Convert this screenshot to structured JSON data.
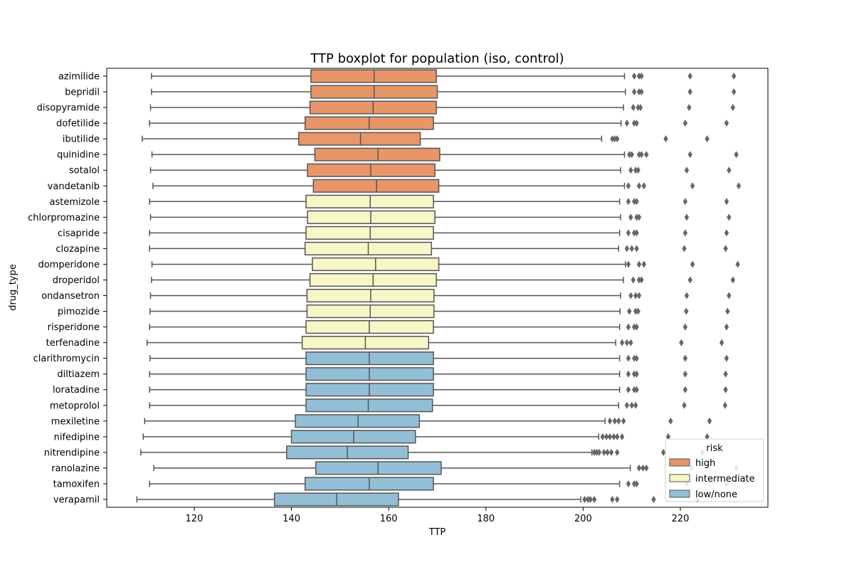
{
  "chart_data": {
    "type": "boxplot",
    "orientation": "horizontal",
    "title": "TTP boxplot for population (iso, control)",
    "xlabel": "TTP",
    "ylabel": "drug_type",
    "xlim": [
      102,
      238
    ],
    "xticks": [
      120,
      140,
      160,
      180,
      200,
      220
    ],
    "legend": {
      "title": "risk",
      "position": "lower-right",
      "entries": [
        "high",
        "intermediate",
        "low/none"
      ]
    },
    "colors": {
      "high": "#e8956a",
      "intermediate": "#f8f6c6",
      "low/none": "#93bfd6",
      "edge": "#555555",
      "outlier": "#666666"
    },
    "categories": [
      "azimilide",
      "bepridil",
      "disopyramide",
      "dofetilide",
      "ibutilide",
      "quinidine",
      "sotalol",
      "vandetanib",
      "astemizole",
      "chlorpromazine",
      "cisapride",
      "clozapine",
      "domperidone",
      "droperidol",
      "ondansetron",
      "pimozide",
      "risperidone",
      "terfenadine",
      "clarithromycin",
      "diltiazem",
      "loratadine",
      "metoprolol",
      "mexiletine",
      "nifedipine",
      "nitrendipine",
      "ranolazine",
      "tamoxifen",
      "verapamil"
    ],
    "series": [
      {
        "category": "azimilide",
        "risk": "high",
        "whisker_low": 111.2,
        "q1": 144.0,
        "median": 157.0,
        "q3": 169.8,
        "whisker_high": 208.5,
        "outliers": [
          210.5,
          211.5,
          212.0,
          222.0,
          231.0
        ]
      },
      {
        "category": "bepridil",
        "risk": "high",
        "whisker_low": 111.2,
        "q1": 144.0,
        "median": 157.0,
        "q3": 170.0,
        "whisker_high": 208.7,
        "outliers": [
          210.5,
          211.5,
          212.0,
          222.0,
          231.0
        ]
      },
      {
        "category": "disopyramide",
        "risk": "high",
        "whisker_low": 111.0,
        "q1": 143.8,
        "median": 156.8,
        "q3": 169.8,
        "whisker_high": 208.3,
        "outliers": [
          210.3,
          211.3,
          211.8,
          221.8,
          230.8
        ]
      },
      {
        "category": "dofetilide",
        "risk": "high",
        "whisker_low": 110.8,
        "q1": 142.8,
        "median": 156.0,
        "q3": 169.2,
        "whisker_high": 207.8,
        "outliers": [
          209.0,
          210.5,
          211.0,
          221.0,
          229.5
        ]
      },
      {
        "category": "ibutilide",
        "risk": "high",
        "whisker_low": 109.3,
        "q1": 141.5,
        "median": 154.2,
        "q3": 166.5,
        "whisker_high": 203.8,
        "outliers": [
          206.0,
          206.5,
          207.0,
          217.0,
          225.5
        ]
      },
      {
        "category": "quinidine",
        "risk": "high",
        "whisker_low": 111.3,
        "q1": 144.8,
        "median": 157.8,
        "q3": 170.5,
        "whisker_high": 208.5,
        "outliers": [
          209.5,
          210.0,
          211.5,
          212.0,
          213.0,
          222.0,
          231.5
        ]
      },
      {
        "category": "sotalol",
        "risk": "high",
        "whisker_low": 111.0,
        "q1": 143.3,
        "median": 156.3,
        "q3": 169.5,
        "whisker_high": 207.7,
        "outliers": [
          209.8,
          210.8,
          211.3,
          221.3,
          230.0
        ]
      },
      {
        "category": "vandetanib",
        "risk": "high",
        "whisker_low": 111.5,
        "q1": 144.5,
        "median": 157.5,
        "q3": 170.3,
        "whisker_high": 208.5,
        "outliers": [
          209.3,
          211.5,
          212.5,
          222.5,
          232.0
        ]
      },
      {
        "category": "astemizole",
        "risk": "intermediate",
        "whisker_low": 110.8,
        "q1": 143.0,
        "median": 156.2,
        "q3": 169.2,
        "whisker_high": 207.5,
        "outliers": [
          209.3,
          210.5,
          211.0,
          221.0,
          229.5
        ]
      },
      {
        "category": "chlorpromazine",
        "risk": "intermediate",
        "whisker_low": 111.0,
        "q1": 143.3,
        "median": 156.3,
        "q3": 169.5,
        "whisker_high": 207.7,
        "outliers": [
          209.8,
          211.0,
          211.5,
          221.3,
          230.0
        ]
      },
      {
        "category": "cisapride",
        "risk": "intermediate",
        "whisker_low": 110.8,
        "q1": 143.0,
        "median": 156.2,
        "q3": 169.2,
        "whisker_high": 207.5,
        "outliers": [
          209.3,
          210.5,
          211.0,
          221.0,
          229.5
        ]
      },
      {
        "category": "clozapine",
        "risk": "intermediate",
        "whisker_low": 110.8,
        "q1": 142.8,
        "median": 155.8,
        "q3": 168.8,
        "whisker_high": 207.3,
        "outliers": [
          209.0,
          210.0,
          211.0,
          220.8,
          229.3
        ]
      },
      {
        "category": "domperidone",
        "risk": "intermediate",
        "whisker_low": 111.3,
        "q1": 144.3,
        "median": 157.3,
        "q3": 170.3,
        "whisker_high": 208.7,
        "outliers": [
          209.3,
          211.5,
          212.5,
          222.5,
          231.8
        ]
      },
      {
        "category": "droperidol",
        "risk": "intermediate",
        "whisker_low": 111.2,
        "q1": 143.8,
        "median": 156.8,
        "q3": 169.8,
        "whisker_high": 208.3,
        "outliers": [
          210.3,
          211.5,
          212.0,
          222.0,
          230.8
        ]
      },
      {
        "category": "ondansetron",
        "risk": "intermediate",
        "whisker_low": 111.0,
        "q1": 143.2,
        "median": 156.3,
        "q3": 169.3,
        "whisker_high": 207.7,
        "outliers": [
          209.8,
          210.8,
          211.5,
          221.3,
          230.0
        ]
      },
      {
        "category": "pimozide",
        "risk": "intermediate",
        "whisker_low": 110.9,
        "q1": 143.2,
        "median": 156.2,
        "q3": 169.3,
        "whisker_high": 207.6,
        "outliers": [
          209.5,
          210.8,
          211.3,
          221.2,
          229.7
        ]
      },
      {
        "category": "risperidone",
        "risk": "intermediate",
        "whisker_low": 110.8,
        "q1": 143.0,
        "median": 156.0,
        "q3": 169.2,
        "whisker_high": 207.5,
        "outliers": [
          209.3,
          210.5,
          211.0,
          221.0,
          229.5
        ]
      },
      {
        "category": "terfenadine",
        "risk": "intermediate",
        "whisker_low": 110.3,
        "q1": 142.2,
        "median": 155.2,
        "q3": 168.2,
        "whisker_high": 206.7,
        "outliers": [
          208.0,
          209.0,
          209.8,
          220.2,
          228.5
        ]
      },
      {
        "category": "clarithromycin",
        "risk": "low/none",
        "whisker_low": 110.9,
        "q1": 143.0,
        "median": 156.0,
        "q3": 169.2,
        "whisker_high": 207.5,
        "outliers": [
          209.3,
          210.5,
          211.0,
          221.0,
          229.5
        ]
      },
      {
        "category": "diltiazem",
        "risk": "low/none",
        "whisker_low": 110.8,
        "q1": 143.0,
        "median": 156.0,
        "q3": 169.2,
        "whisker_high": 207.5,
        "outliers": [
          209.3,
          210.5,
          211.0,
          221.0,
          229.3
        ]
      },
      {
        "category": "loratadine",
        "risk": "low/none",
        "whisker_low": 110.8,
        "q1": 143.0,
        "median": 156.0,
        "q3": 169.2,
        "whisker_high": 207.5,
        "outliers": [
          209.3,
          210.5,
          211.0,
          221.0,
          229.3
        ]
      },
      {
        "category": "metoprolol",
        "risk": "low/none",
        "whisker_low": 110.8,
        "q1": 143.0,
        "median": 155.8,
        "q3": 169.0,
        "whisker_high": 207.3,
        "outliers": [
          209.0,
          210.0,
          210.8,
          220.8,
          229.2
        ]
      },
      {
        "category": "mexiletine",
        "risk": "low/none",
        "whisker_low": 109.8,
        "q1": 140.8,
        "median": 153.7,
        "q3": 166.3,
        "whisker_high": 204.5,
        "outliers": [
          205.5,
          206.5,
          207.3,
          208.3,
          218.0,
          226.0
        ]
      },
      {
        "category": "nifedipine",
        "risk": "low/none",
        "whisker_low": 109.5,
        "q1": 140.0,
        "median": 152.8,
        "q3": 165.5,
        "whisker_high": 203.2,
        "outliers": [
          204.0,
          204.8,
          205.5,
          206.3,
          207.0,
          208.0,
          217.5,
          225.5
        ]
      },
      {
        "category": "nitrendipine",
        "risk": "low/none",
        "whisker_low": 109.0,
        "q1": 139.0,
        "median": 151.5,
        "q3": 164.0,
        "whisker_high": 201.8,
        "outliers": [
          202.3,
          202.8,
          203.3,
          204.3,
          205.0,
          205.8,
          207.0,
          216.5,
          224.5
        ]
      },
      {
        "category": "ranolazine",
        "risk": "low/none",
        "whisker_low": 111.7,
        "q1": 145.0,
        "median": 157.8,
        "q3": 170.8,
        "whisker_high": 209.7,
        "outliers": [
          211.5,
          212.3,
          213.0,
          222.3,
          231.5
        ]
      },
      {
        "category": "tamoxifen",
        "risk": "low/none",
        "whisker_low": 110.8,
        "q1": 142.8,
        "median": 156.0,
        "q3": 169.2,
        "whisker_high": 207.5,
        "outliers": [
          209.3,
          210.5,
          211.0,
          221.3,
          229.5
        ]
      },
      {
        "category": "verapamil",
        "risk": "low/none",
        "whisker_low": 108.2,
        "q1": 136.5,
        "median": 149.3,
        "q3": 162.0,
        "whisker_high": 199.5,
        "outliers": [
          200.3,
          201.0,
          201.5,
          202.3,
          206.0,
          207.0,
          214.5,
          223.5
        ]
      }
    ]
  }
}
